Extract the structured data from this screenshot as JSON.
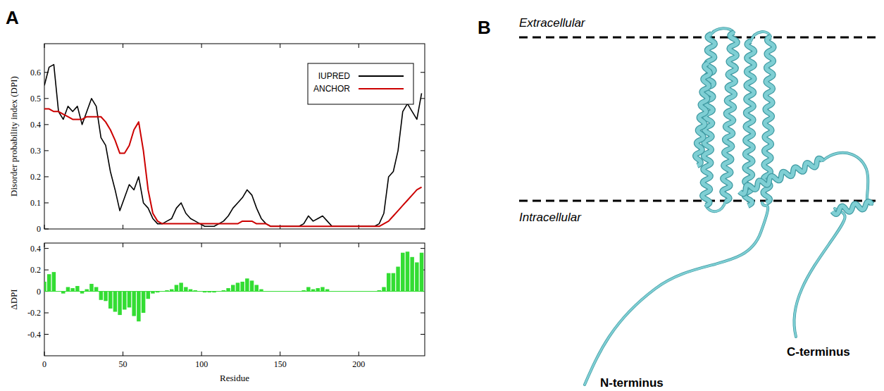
{
  "chart_data": [
    {
      "type": "line",
      "y_label": "Disorder probability index (DPI)",
      "x": [
        0,
        3,
        6,
        9,
        12,
        15,
        18,
        21,
        24,
        27,
        30,
        33,
        36,
        39,
        42,
        45,
        48,
        51,
        54,
        57,
        60,
        63,
        66,
        69,
        72,
        75,
        78,
        81,
        84,
        87,
        90,
        93,
        96,
        99,
        102,
        105,
        108,
        111,
        114,
        117,
        120,
        123,
        126,
        129,
        132,
        135,
        138,
        141,
        144,
        147,
        150,
        153,
        156,
        159,
        162,
        165,
        168,
        171,
        174,
        177,
        180,
        183,
        186,
        189,
        192,
        195,
        198,
        201,
        204,
        207,
        210,
        213,
        216,
        219,
        222,
        225,
        228,
        231,
        234,
        237,
        240
      ],
      "series": [
        {
          "name": "IUPRED",
          "color": "#000000",
          "values": [
            0.55,
            0.62,
            0.63,
            0.45,
            0.42,
            0.47,
            0.45,
            0.47,
            0.4,
            0.45,
            0.5,
            0.47,
            0.35,
            0.32,
            0.22,
            0.15,
            0.07,
            0.12,
            0.17,
            0.15,
            0.2,
            0.1,
            0.08,
            0.04,
            0.02,
            0.02,
            0.03,
            0.04,
            0.08,
            0.1,
            0.06,
            0.04,
            0.03,
            0.02,
            0.01,
            0.01,
            0.01,
            0.02,
            0.03,
            0.05,
            0.08,
            0.1,
            0.12,
            0.15,
            0.13,
            0.08,
            0.04,
            0.02,
            0.01,
            0.01,
            0.01,
            0.01,
            0.01,
            0.01,
            0.01,
            0.02,
            0.05,
            0.03,
            0.04,
            0.05,
            0.03,
            0.01,
            0.01,
            0.01,
            0.01,
            0.01,
            0.01,
            0.01,
            0.01,
            0.01,
            0.01,
            0.02,
            0.06,
            0.2,
            0.22,
            0.3,
            0.45,
            0.48,
            0.45,
            0.42,
            0.52
          ]
        },
        {
          "name": "ANCHOR",
          "color": "#cc0000",
          "values": [
            0.46,
            0.46,
            0.45,
            0.45,
            0.44,
            0.43,
            0.42,
            0.42,
            0.42,
            0.43,
            0.43,
            0.43,
            0.43,
            0.41,
            0.38,
            0.34,
            0.29,
            0.29,
            0.32,
            0.38,
            0.41,
            0.3,
            0.15,
            0.06,
            0.03,
            0.02,
            0.02,
            0.02,
            0.02,
            0.02,
            0.02,
            0.02,
            0.02,
            0.02,
            0.02,
            0.02,
            0.02,
            0.02,
            0.02,
            0.02,
            0.02,
            0.02,
            0.03,
            0.03,
            0.03,
            0.02,
            0.02,
            0.02,
            0.01,
            0.01,
            0.01,
            0.01,
            0.01,
            0.01,
            0.01,
            0.01,
            0.01,
            0.01,
            0.01,
            0.01,
            0.01,
            0.01,
            0.01,
            0.01,
            0.01,
            0.01,
            0.01,
            0.01,
            0.01,
            0.01,
            0.01,
            0.01,
            0.02,
            0.03,
            0.05,
            0.07,
            0.09,
            0.11,
            0.13,
            0.15,
            0.16
          ]
        }
      ],
      "xlim": [
        0,
        242
      ],
      "ylim": [
        0,
        0.71
      ],
      "xticks": [
        0,
        50,
        100,
        150,
        200
      ],
      "yticks": [
        0,
        0.1,
        0.2,
        0.3,
        0.4,
        0.5,
        0.6
      ],
      "tick_labels": "y",
      "legend": "upper right"
    },
    {
      "type": "bar",
      "x_label": "Residue",
      "y_label": "ΔDPI",
      "x": [
        0,
        3,
        6,
        9,
        12,
        15,
        18,
        21,
        24,
        27,
        30,
        33,
        36,
        39,
        42,
        45,
        48,
        51,
        54,
        57,
        60,
        63,
        66,
        69,
        72,
        75,
        78,
        81,
        84,
        87,
        90,
        93,
        96,
        99,
        102,
        105,
        108,
        111,
        114,
        117,
        120,
        123,
        126,
        129,
        132,
        135,
        138,
        141,
        144,
        147,
        150,
        153,
        156,
        159,
        162,
        165,
        168,
        171,
        174,
        177,
        180,
        183,
        186,
        189,
        192,
        195,
        198,
        201,
        204,
        207,
        210,
        213,
        216,
        219,
        222,
        225,
        228,
        231,
        234,
        237,
        240
      ],
      "values": [
        0.09,
        0.16,
        0.18,
        0,
        -0.02,
        0.04,
        0.03,
        0.05,
        -0.02,
        0.02,
        0.07,
        0.04,
        -0.08,
        -0.09,
        -0.16,
        -0.19,
        -0.22,
        -0.17,
        -0.15,
        -0.23,
        -0.28,
        -0.2,
        -0.07,
        -0.02,
        -0.01,
        0,
        0.01,
        0.02,
        0.06,
        0.08,
        0.04,
        0.02,
        0.01,
        0,
        -0.01,
        -0.01,
        -0.01,
        0,
        0.01,
        0.03,
        0.06,
        0.08,
        0.09,
        0.12,
        0.1,
        0.06,
        0.02,
        0,
        0,
        0,
        0,
        0,
        0,
        0,
        0,
        0.01,
        0.04,
        0.02,
        0.03,
        0.04,
        0.02,
        0,
        0,
        0,
        0,
        0,
        0,
        0,
        0,
        0,
        0,
        0.01,
        0.04,
        0.17,
        0.17,
        0.23,
        0.36,
        0.37,
        0.32,
        0.27,
        0.36
      ],
      "color": "#33dd33",
      "xlim": [
        0,
        242
      ],
      "ylim": [
        -0.6,
        0.45
      ],
      "xticks": [
        0,
        50,
        100,
        150,
        200
      ],
      "yticks": [
        -0.4,
        -0.2,
        0,
        0.2,
        0.4
      ]
    }
  ],
  "panel_a": {
    "label": "A"
  },
  "panel_b": {
    "label": "B",
    "membrane": {
      "extracellular": "Extracellular",
      "intracellular": "Intracellular"
    },
    "termini": {
      "n": "N-terminus",
      "c": "C-terminus"
    }
  }
}
